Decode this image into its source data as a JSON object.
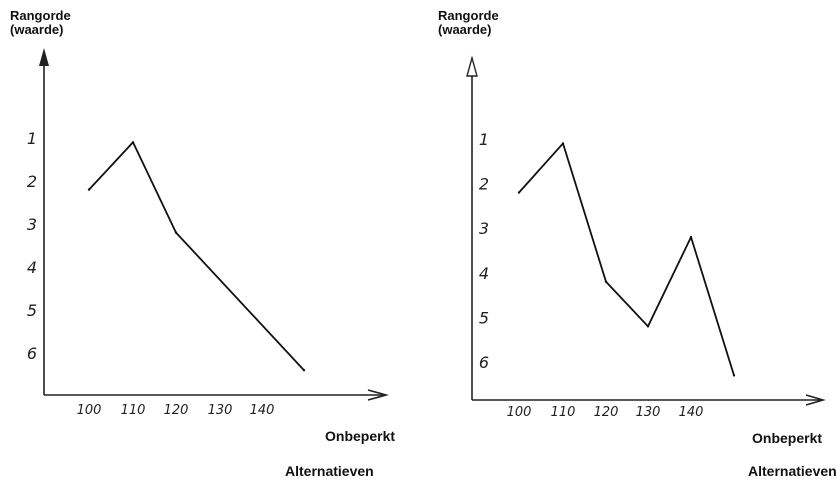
{
  "colors": {
    "ink": "#111111",
    "background": "#ffffff"
  },
  "chart_data": [
    {
      "type": "line",
      "ylabel_lines": [
        "Rangorde",
        "(waarde)"
      ],
      "xlabel": "Onbeperkt",
      "footer": "Alternatieven",
      "x_tick_labels": [
        "100",
        "110",
        "120",
        "130",
        "140"
      ],
      "y_tick_labels": [
        "1",
        "2",
        "3",
        "4",
        "5",
        "6"
      ],
      "y_inverted": true,
      "x_kind": "ordinal",
      "x": [
        "100",
        "110",
        "120",
        "Onbeperkt"
      ],
      "values": [
        2.2,
        1.1,
        3.2,
        6.4
      ]
    },
    {
      "type": "line",
      "ylabel_lines": [
        "Rangorde",
        "(waarde)"
      ],
      "xlabel": "Onbeperkt",
      "footer": "Alternatieven",
      "x_tick_labels": [
        "100",
        "110",
        "120",
        "130",
        "140"
      ],
      "y_tick_labels": [
        "1",
        "2",
        "3",
        "4",
        "5",
        "6"
      ],
      "y_inverted": true,
      "x_kind": "ordinal",
      "x": [
        "100",
        "110",
        "120",
        "130",
        "140",
        "Onbeperkt"
      ],
      "values": [
        2.2,
        1.1,
        4.2,
        5.2,
        3.2,
        6.3
      ]
    }
  ]
}
